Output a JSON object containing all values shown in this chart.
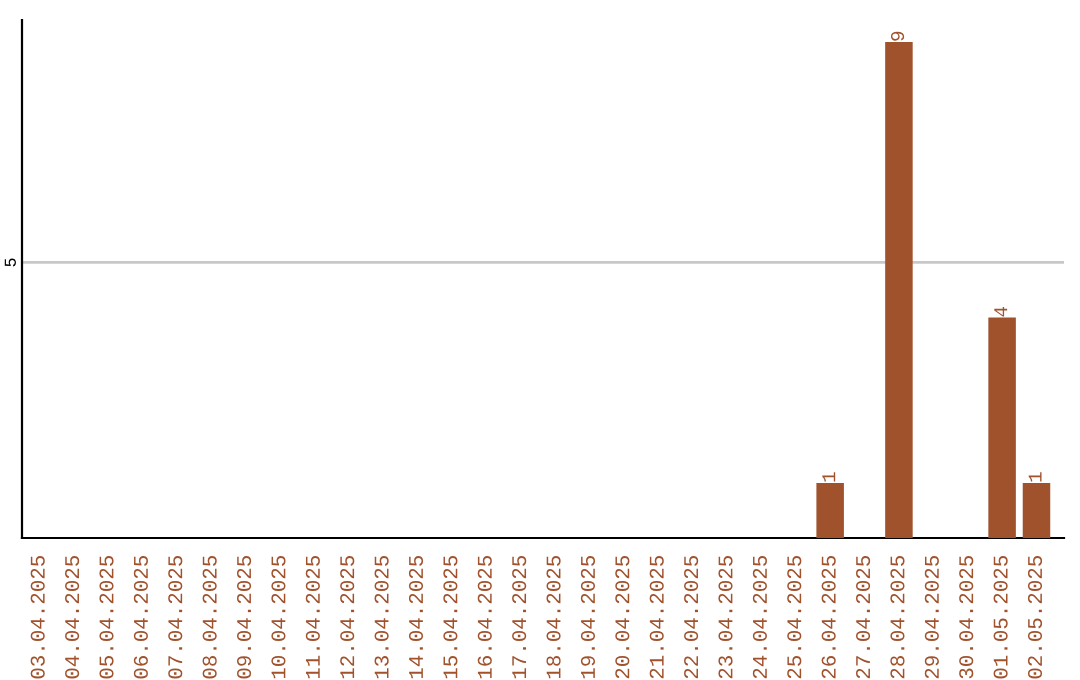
{
  "chart_data": {
    "type": "bar",
    "categories": [
      "03.04.2025",
      "04.04.2025",
      "05.04.2025",
      "06.04.2025",
      "07.04.2025",
      "08.04.2025",
      "09.04.2025",
      "10.04.2025",
      "11.04.2025",
      "12.04.2025",
      "13.04.2025",
      "14.04.2025",
      "15.04.2025",
      "16.04.2025",
      "17.04.2025",
      "18.04.2025",
      "19.04.2025",
      "20.04.2025",
      "21.04.2025",
      "22.04.2025",
      "23.04.2025",
      "24.04.2025",
      "25.04.2025",
      "26.04.2025",
      "27.04.2025",
      "28.04.2025",
      "29.04.2025",
      "30.04.2025",
      "01.05.2025",
      "02.05.2025"
    ],
    "values": [
      null,
      null,
      null,
      null,
      null,
      null,
      null,
      null,
      null,
      null,
      null,
      null,
      null,
      null,
      null,
      null,
      null,
      null,
      null,
      null,
      null,
      null,
      null,
      1,
      null,
      9,
      null,
      null,
      4,
      1
    ],
    "data_labels": true,
    "color": "#a0522d",
    "ylim": [
      0,
      9.4
    ],
    "yticks": [
      5
    ],
    "grid": "y"
  }
}
